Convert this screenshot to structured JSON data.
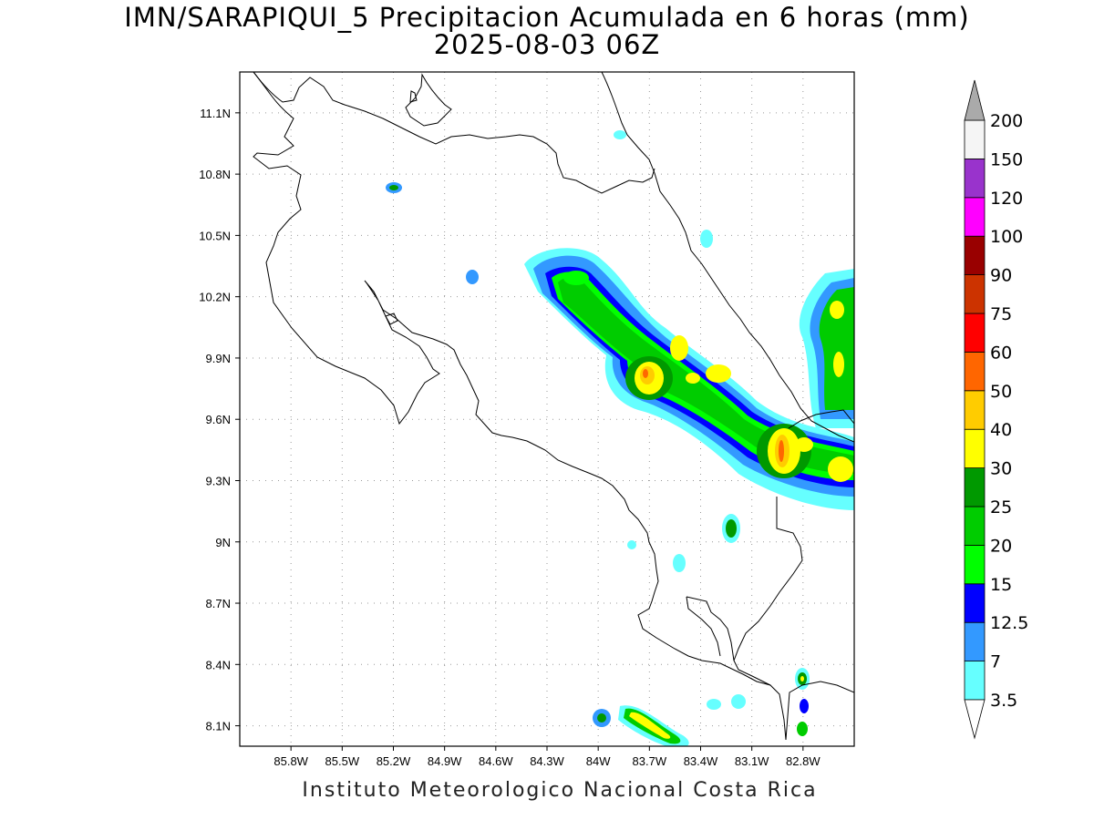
{
  "title": {
    "line1": "IMN/SARAPIQUI_5 Precipitacion Acumulada en 6 horas (mm)",
    "line2": "2025-08-03 06Z"
  },
  "credit": "Instituto Meteorologico Nacional Costa Rica",
  "map": {
    "lon_range": [
      -86.1,
      -82.5
    ],
    "lat_range": [
      8.0,
      11.3
    ],
    "grid": true
  },
  "axes": {
    "lat_ticks": [
      {
        "value": 11.1,
        "label": "11.1N"
      },
      {
        "value": 10.8,
        "label": "10.8N"
      },
      {
        "value": 10.5,
        "label": "10.5N"
      },
      {
        "value": 10.2,
        "label": "10.2N"
      },
      {
        "value": 9.9,
        "label": "9.9N"
      },
      {
        "value": 9.6,
        "label": "9.6N"
      },
      {
        "value": 9.3,
        "label": "9.3N"
      },
      {
        "value": 9.0,
        "label": "9N"
      },
      {
        "value": 8.7,
        "label": "8.7N"
      },
      {
        "value": 8.4,
        "label": "8.4N"
      },
      {
        "value": 8.1,
        "label": "8.1N"
      }
    ],
    "lon_ticks": [
      {
        "value": -85.8,
        "label": "85.8W"
      },
      {
        "value": -85.5,
        "label": "85.5W"
      },
      {
        "value": -85.2,
        "label": "85.2W"
      },
      {
        "value": -84.9,
        "label": "84.9W"
      },
      {
        "value": -84.6,
        "label": "84.6W"
      },
      {
        "value": -84.3,
        "label": "84.3W"
      },
      {
        "value": -84.0,
        "label": "84W"
      },
      {
        "value": -83.7,
        "label": "83.7W"
      },
      {
        "value": -83.4,
        "label": "83.4W"
      },
      {
        "value": -83.1,
        "label": "83.1W"
      },
      {
        "value": -82.8,
        "label": "82.8W"
      }
    ]
  },
  "colorbar": {
    "levels": [
      {
        "label": "3.5",
        "color": "#66ffff"
      },
      {
        "label": "7",
        "color": "#3399ff"
      },
      {
        "label": "12.5",
        "color": "#0000ff"
      },
      {
        "label": "15",
        "color": "#00ff00"
      },
      {
        "label": "20",
        "color": "#00cc00"
      },
      {
        "label": "25",
        "color": "#009900"
      },
      {
        "label": "30",
        "color": "#ffff00"
      },
      {
        "label": "40",
        "color": "#ffcc00"
      },
      {
        "label": "50",
        "color": "#ff6600"
      },
      {
        "label": "60",
        "color": "#ff0000"
      },
      {
        "label": "75",
        "color": "#cc3300"
      },
      {
        "label": "90",
        "color": "#990000"
      },
      {
        "label": "100",
        "color": "#ff00ff"
      },
      {
        "label": "120",
        "color": "#9933cc"
      },
      {
        "label": "150",
        "color": "#f5f5f5"
      },
      {
        "label": "200",
        "color": "#aaaaaa"
      }
    ],
    "under_color": "#ffffff",
    "over_color": "#aaaaaa"
  }
}
